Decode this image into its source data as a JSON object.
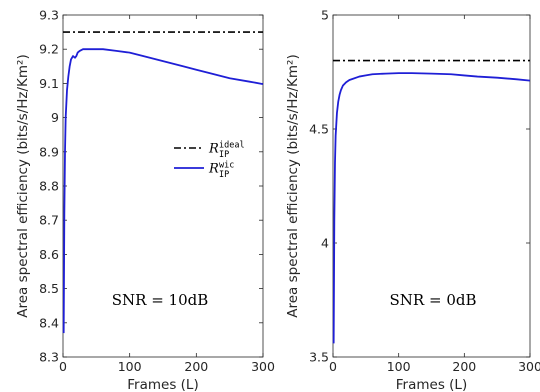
{
  "chart_data": [
    {
      "type": "line",
      "xlabel": "Frames (L)",
      "ylabel": "Area spectral efficiency (bits/s/Hz/Km²)",
      "xlim": [
        0,
        300
      ],
      "ylim": [
        8.3,
        9.3
      ],
      "xticks": [
        "0",
        "100",
        "200",
        "300"
      ],
      "yticks": [
        "8.3",
        "8.4",
        "8.5",
        "8.6",
        "8.7",
        "8.8",
        "8.9",
        "9",
        "9.1",
        "9.2",
        "9.3"
      ],
      "annotation": "SNR = 10dB",
      "legend": {
        "placement": "right-middle"
      },
      "series": [
        {
          "name": "R_IP^ideal",
          "legend_main": "R",
          "legend_sup": "ideal",
          "legend_sub": "IP",
          "style": "dashdot",
          "color": "#000000",
          "x": [
            0,
            300
          ],
          "y": [
            9.25,
            9.25
          ]
        },
        {
          "name": "R_IP^wic",
          "legend_main": "R",
          "legend_sup": "wic",
          "legend_sub": "IP",
          "style": "solid",
          "color": "#1f1fd6",
          "x": [
            1,
            2,
            3,
            4,
            6,
            8,
            10,
            12,
            15,
            18,
            20,
            22,
            25,
            30,
            35,
            40,
            50,
            60,
            80,
            100,
            120,
            150,
            180,
            200,
            220,
            250,
            280,
            300
          ],
          "y": [
            8.37,
            8.72,
            8.9,
            9.0,
            9.08,
            9.12,
            9.15,
            9.17,
            9.18,
            9.175,
            9.18,
            9.19,
            9.195,
            9.2,
            9.2,
            9.2,
            9.2,
            9.2,
            9.195,
            9.19,
            9.18,
            9.165,
            9.15,
            9.14,
            9.13,
            9.115,
            9.105,
            9.098
          ]
        }
      ]
    },
    {
      "type": "line",
      "xlabel": "Frames (L)",
      "ylabel": "Area spectral efficiency (bits/s/Hz/Km²)",
      "xlim": [
        0,
        300
      ],
      "ylim": [
        3.5,
        5
      ],
      "xticks": [
        "0",
        "100",
        "200",
        "300"
      ],
      "yticks": [
        "3.5",
        "4",
        "4.5",
        "5"
      ],
      "annotation": "SNR = 0dB",
      "series": [
        {
          "name": "R_IP^ideal",
          "style": "dashdot",
          "color": "#000000",
          "x": [
            0,
            300
          ],
          "y": [
            4.8,
            4.8
          ]
        },
        {
          "name": "R_IP^wic",
          "style": "solid",
          "color": "#1f1fd6",
          "x": [
            1,
            2,
            3,
            4,
            6,
            8,
            10,
            12,
            15,
            20,
            25,
            30,
            40,
            50,
            60,
            80,
            100,
            120,
            150,
            180,
            200,
            220,
            250,
            280,
            300
          ],
          "y": [
            3.56,
            4.1,
            4.35,
            4.47,
            4.57,
            4.62,
            4.65,
            4.67,
            4.69,
            4.705,
            4.715,
            4.72,
            4.73,
            4.735,
            4.74,
            4.743,
            4.745,
            4.745,
            4.743,
            4.74,
            4.735,
            4.73,
            4.725,
            4.718,
            4.712
          ]
        }
      ]
    }
  ]
}
